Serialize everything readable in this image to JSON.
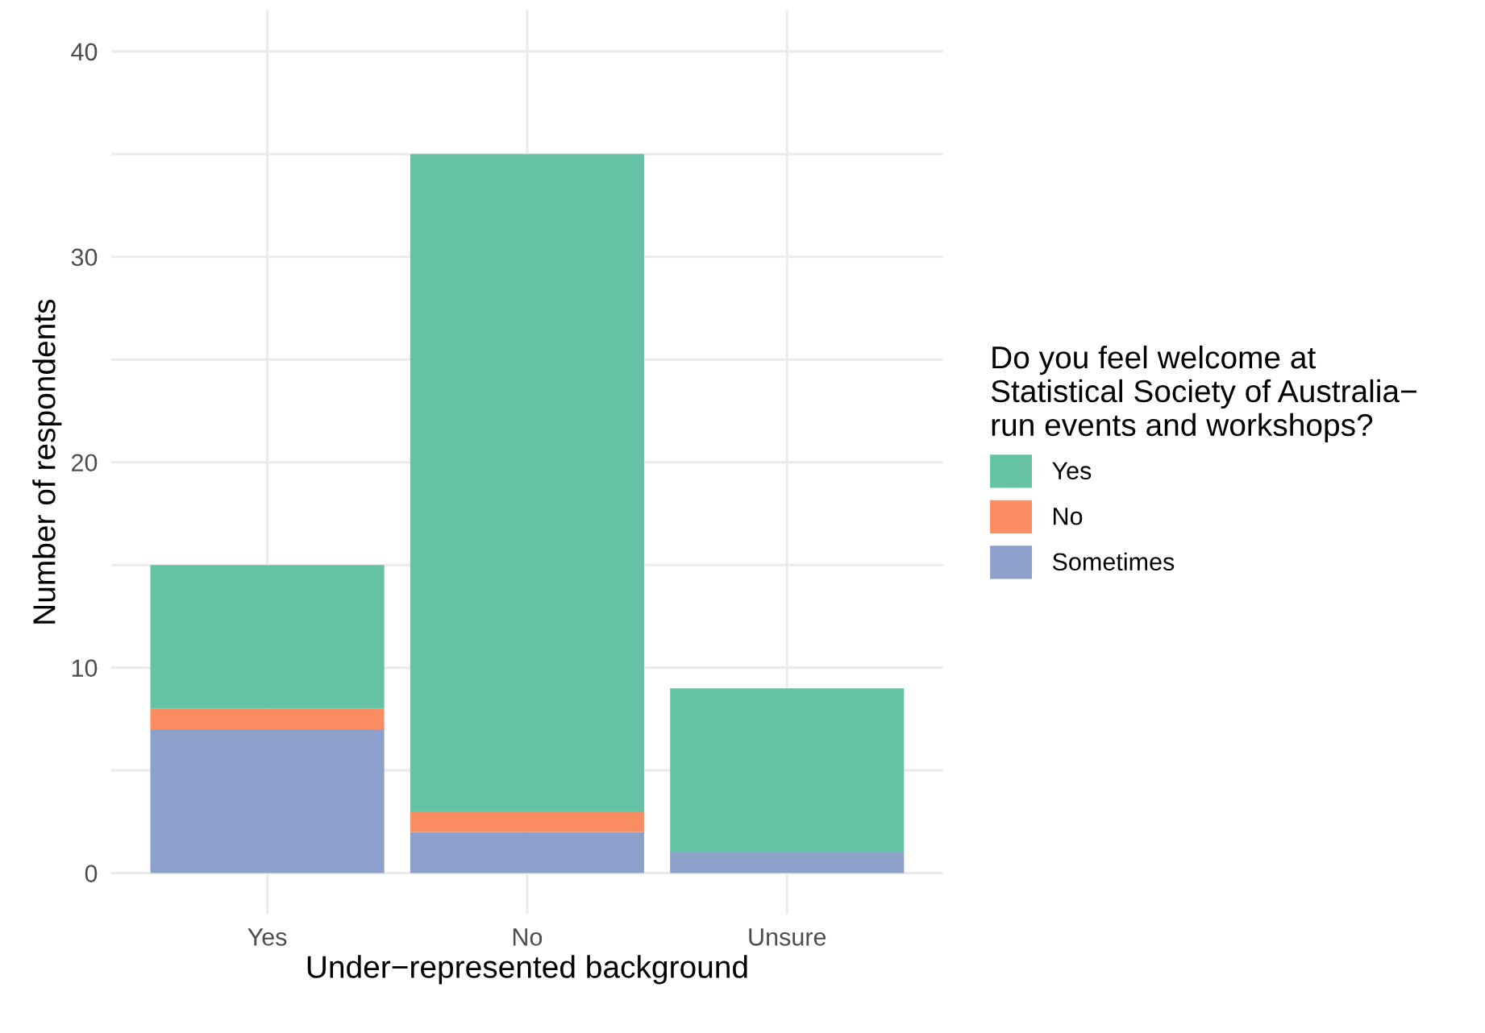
{
  "chart_data": {
    "type": "bar",
    "stacked": true,
    "xlabel": "Under−represented background",
    "ylabel": "Number of respondents",
    "legend_title": "Do you feel welcome at\nStatistical Society of Australia−\nrun events and workshops?",
    "categories": [
      "Yes",
      "No",
      "Unsure"
    ],
    "series": [
      {
        "name": "Sometimes",
        "color": "#8da0cb",
        "values": [
          7,
          2,
          1
        ]
      },
      {
        "name": "No",
        "color": "#fc8d62",
        "values": [
          1,
          1,
          0
        ]
      },
      {
        "name": "Yes",
        "color": "#66c2a5",
        "values": [
          7,
          32,
          8
        ]
      }
    ],
    "ylim": [
      -2,
      42
    ],
    "yticks": [
      0,
      {
        "value": 5,
        "label": null
      },
      10,
      {
        "value": 15,
        "label": null
      },
      20,
      {
        "value": 25,
        "label": null
      },
      30,
      {
        "value": 35,
        "label": null
      },
      40
    ],
    "grid": true,
    "legend": "right"
  }
}
